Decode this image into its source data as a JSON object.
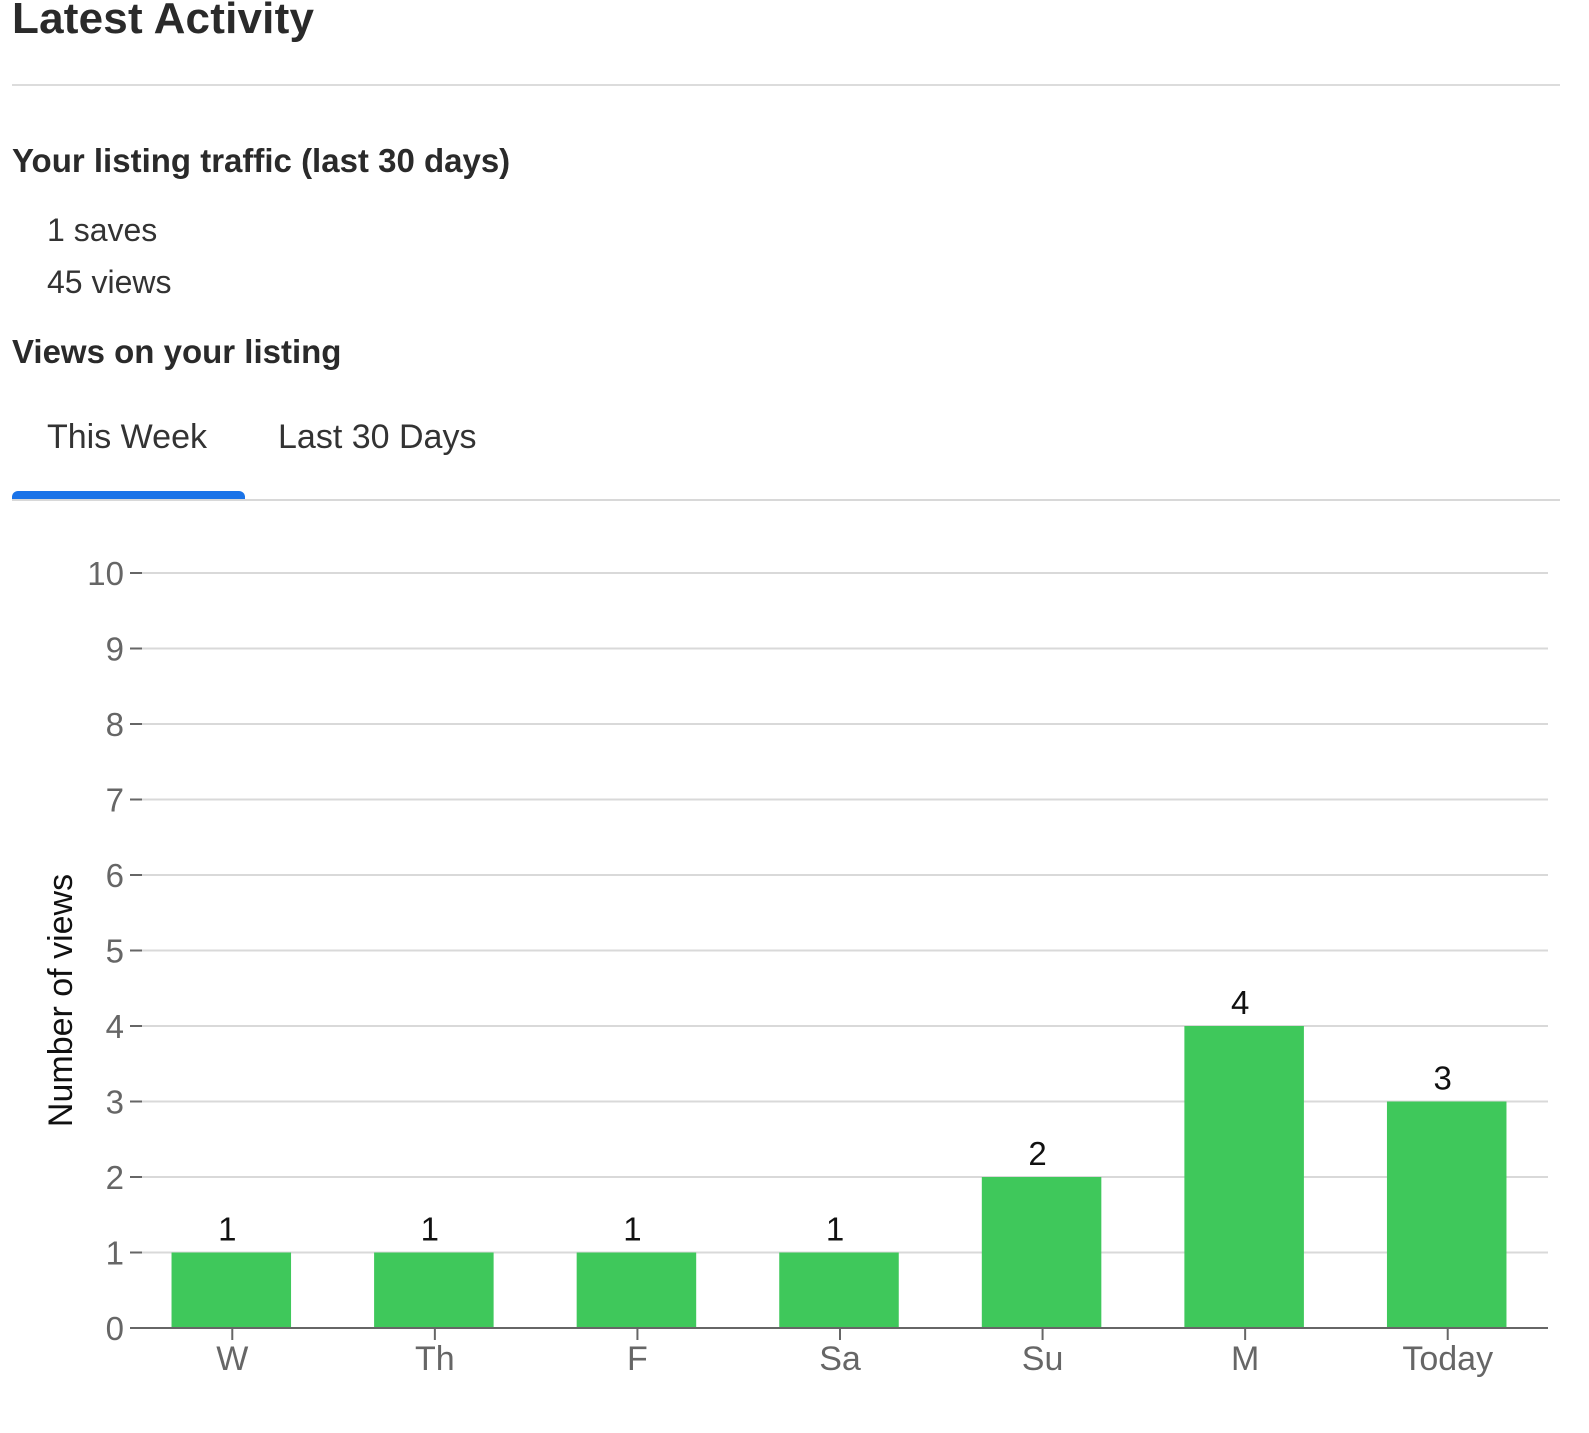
{
  "header": {
    "title": "Latest Activity"
  },
  "traffic": {
    "heading": "Your listing traffic (last 30 days)",
    "saves": "1 saves",
    "views": "45 views"
  },
  "views_section": {
    "heading": "Views on your listing",
    "tabs": [
      {
        "label": "This Week",
        "active": true
      },
      {
        "label": "Last 30 Days",
        "active": false
      }
    ]
  },
  "colors": {
    "bar": "#3fc85b",
    "accent": "#1a73e8",
    "grid": "#d9d9d9"
  },
  "chart_data": {
    "type": "bar",
    "categories": [
      "W",
      "Th",
      "F",
      "Sa",
      "Su",
      "M",
      "Today"
    ],
    "values": [
      1,
      1,
      1,
      1,
      2,
      4,
      3
    ],
    "ylabel": "Number of views",
    "xlabel": "",
    "ylim": [
      0,
      10
    ],
    "yticks": [
      0,
      1,
      2,
      3,
      4,
      5,
      6,
      7,
      8,
      9,
      10
    ],
    "grid": true,
    "data_labels": true
  }
}
